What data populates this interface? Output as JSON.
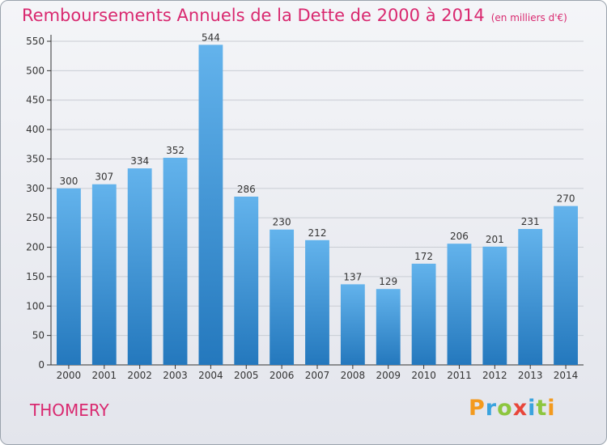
{
  "chart_data": {
    "type": "bar",
    "title": "Remboursements Annuels de la Dette de 2000 à 2014",
    "subtitle": "(en milliers d'€)",
    "categories": [
      "2000",
      "2001",
      "2002",
      "2003",
      "2004",
      "2005",
      "2006",
      "2007",
      "2008",
      "2009",
      "2010",
      "2011",
      "2012",
      "2013",
      "2014"
    ],
    "values": [
      300,
      307,
      334,
      352,
      544,
      286,
      230,
      212,
      137,
      129,
      172,
      206,
      201,
      231,
      270
    ],
    "ylim": [
      0,
      550
    ],
    "yticks": [
      0,
      50,
      100,
      150,
      200,
      250,
      300,
      350,
      400,
      450,
      500,
      550
    ],
    "grid": true,
    "bar_color_top": "#63b3ec",
    "bar_color_bottom": "#2478bd"
  },
  "commune": "THOMERY",
  "logo_text": "Proxiti",
  "logo_colors": [
    "#f39a1e",
    "#3aa3de",
    "#8dc63f",
    "#e8463a",
    "#3aa3de",
    "#8dc63f",
    "#f39a1e"
  ]
}
